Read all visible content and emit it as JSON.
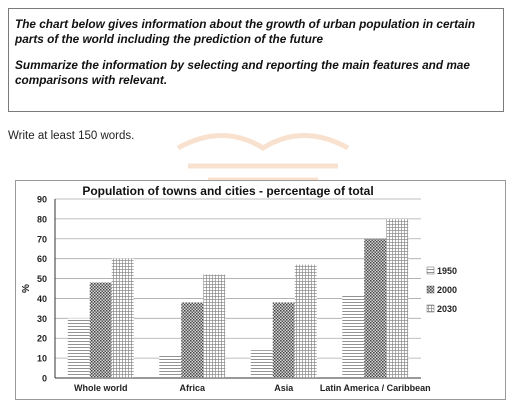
{
  "task": {
    "line1": "The chart below gives information about the growth of urban population in certain parts of the world including the prediction of the future",
    "line2": "Summarize the information by selecting and reporting the main features and mae comparisons with relevant."
  },
  "word_count": "Write at least 150 words.",
  "colors": {
    "watermark": "#f3c9a8",
    "bar_border": "#555555",
    "axis": "#333333",
    "frame": "#9a9a9a"
  },
  "chart_data": {
    "type": "bar",
    "title": "Population of towns and cities - percentage of total",
    "xlabel": "",
    "ylabel": "%",
    "ylim": [
      0,
      90
    ],
    "yticks": [
      0,
      10,
      20,
      30,
      40,
      50,
      60,
      70,
      80,
      90
    ],
    "grid": true,
    "legend": "right",
    "categories": [
      "Whole world",
      "Africa",
      "Asia",
      "Latin America / Caribbean"
    ],
    "series": [
      {
        "name": "1950",
        "values": [
          30,
          12,
          14,
          42
        ]
      },
      {
        "name": "2000",
        "values": [
          48,
          38,
          38,
          70
        ]
      },
      {
        "name": "2030",
        "values": [
          60,
          52,
          57,
          80
        ]
      }
    ]
  }
}
